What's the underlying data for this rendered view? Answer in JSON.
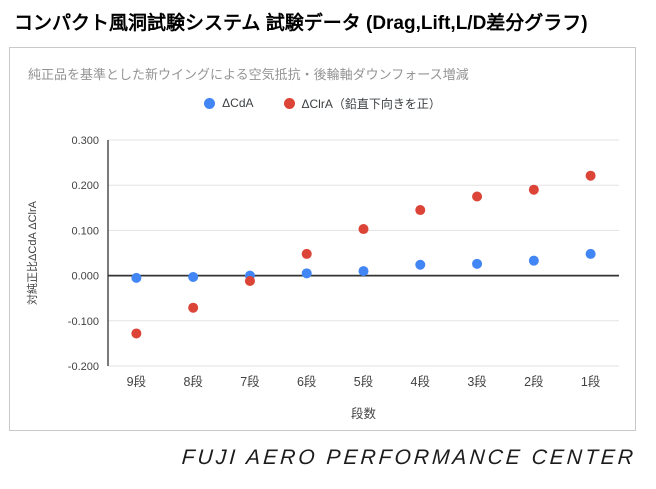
{
  "page": {
    "title": "コンパクト風洞試験システム 試験データ (Drag,Lift,L/D差分グラフ)",
    "footer": "FUJI AERO PERFORMANCE CENTER"
  },
  "chart": {
    "subtitle": "純正品を基準とした新ウイングによる空気抵抗・後輪軸ダウンフォース増減"
  },
  "chart_data": {
    "type": "scatter",
    "title": "純正品を基準とした新ウイングによる空気抵抗・後輪軸ダウンフォース増減",
    "categories": [
      "9段",
      "8段",
      "7段",
      "6段",
      "5段",
      "4段",
      "3段",
      "2段",
      "1段"
    ],
    "series": [
      {
        "name": "ΔCdA",
        "color": "#4285F4",
        "values": [
          -0.005,
          -0.003,
          0.0,
          0.005,
          0.01,
          0.024,
          0.026,
          0.033,
          0.048
        ]
      },
      {
        "name": "ΔClrA（鉛直下向きを正）",
        "color": "#DB4437",
        "values": [
          -0.128,
          -0.071,
          -0.012,
          0.048,
          0.103,
          0.145,
          0.175,
          0.19,
          0.221
        ]
      }
    ],
    "xlabel": "段数",
    "ylabel": "対純正比ΔCdA ΔClrA",
    "ylim": [
      -0.2,
      0.3
    ],
    "ytick_step": 0.1,
    "ytick_decimals": 3,
    "grid": true,
    "legend_position": "top",
    "point_radius": 5,
    "colors": {
      "grid_line": "#e3e3e3",
      "zero_line": "#333333",
      "axis_line": "#333333",
      "axis_text": "#424242",
      "subtitle_text": "#949494"
    }
  }
}
